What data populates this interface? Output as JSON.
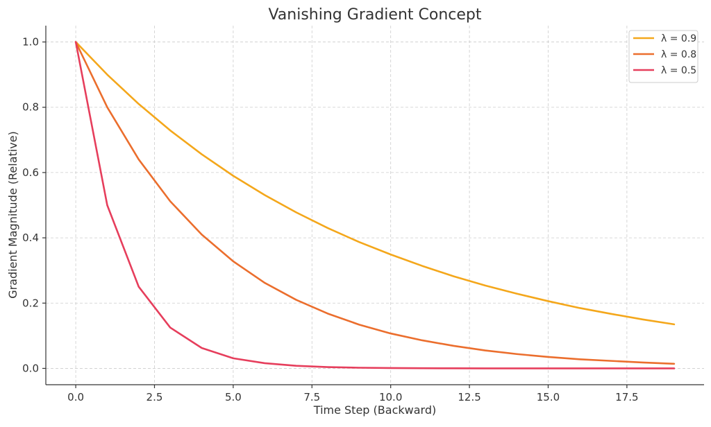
{
  "chart_data": {
    "type": "line",
    "title": "Vanishing Gradient Concept",
    "xlabel": "Time Step (Backward)",
    "ylabel": "Gradient Magnitude (Relative)",
    "xlim": [
      -0.95,
      19.95
    ],
    "ylim": [
      -0.05,
      1.05
    ],
    "xticks": [
      0.0,
      2.5,
      5.0,
      7.5,
      10.0,
      12.5,
      15.0,
      17.5
    ],
    "xtick_labels": [
      "0.0",
      "2.5",
      "5.0",
      "7.5",
      "10.0",
      "12.5",
      "15.0",
      "17.5"
    ],
    "yticks": [
      0.0,
      0.2,
      0.4,
      0.6,
      0.8,
      1.0
    ],
    "ytick_labels": [
      "0.0",
      "0.2",
      "0.4",
      "0.6",
      "0.8",
      "1.0"
    ],
    "grid": true,
    "legend_position": "top-right",
    "x": [
      0,
      1,
      2,
      3,
      4,
      5,
      6,
      7,
      8,
      9,
      10,
      11,
      12,
      13,
      14,
      15,
      16,
      17,
      18,
      19
    ],
    "series": [
      {
        "name": "λ = 0.9",
        "color": "#f4a71b",
        "values": [
          1.0,
          0.9,
          0.81,
          0.729,
          0.656,
          0.59,
          0.531,
          0.478,
          0.43,
          0.387,
          0.349,
          0.314,
          0.282,
          0.254,
          0.229,
          0.206,
          0.185,
          0.167,
          0.15,
          0.135
        ]
      },
      {
        "name": "λ = 0.8",
        "color": "#eb6e2d",
        "values": [
          1.0,
          0.8,
          0.64,
          0.512,
          0.41,
          0.328,
          0.262,
          0.21,
          0.168,
          0.134,
          0.107,
          0.086,
          0.069,
          0.055,
          0.044,
          0.035,
          0.028,
          0.023,
          0.018,
          0.014
        ]
      },
      {
        "name": "λ = 0.5",
        "color": "#e63e5c",
        "values": [
          1.0,
          0.5,
          0.25,
          0.125,
          0.0625,
          0.031,
          0.016,
          0.008,
          0.004,
          0.002,
          0.001,
          0.0005,
          0.0002,
          0.0001,
          0.0001,
          0.0,
          0.0,
          0.0,
          0.0,
          0.0
        ]
      }
    ]
  }
}
